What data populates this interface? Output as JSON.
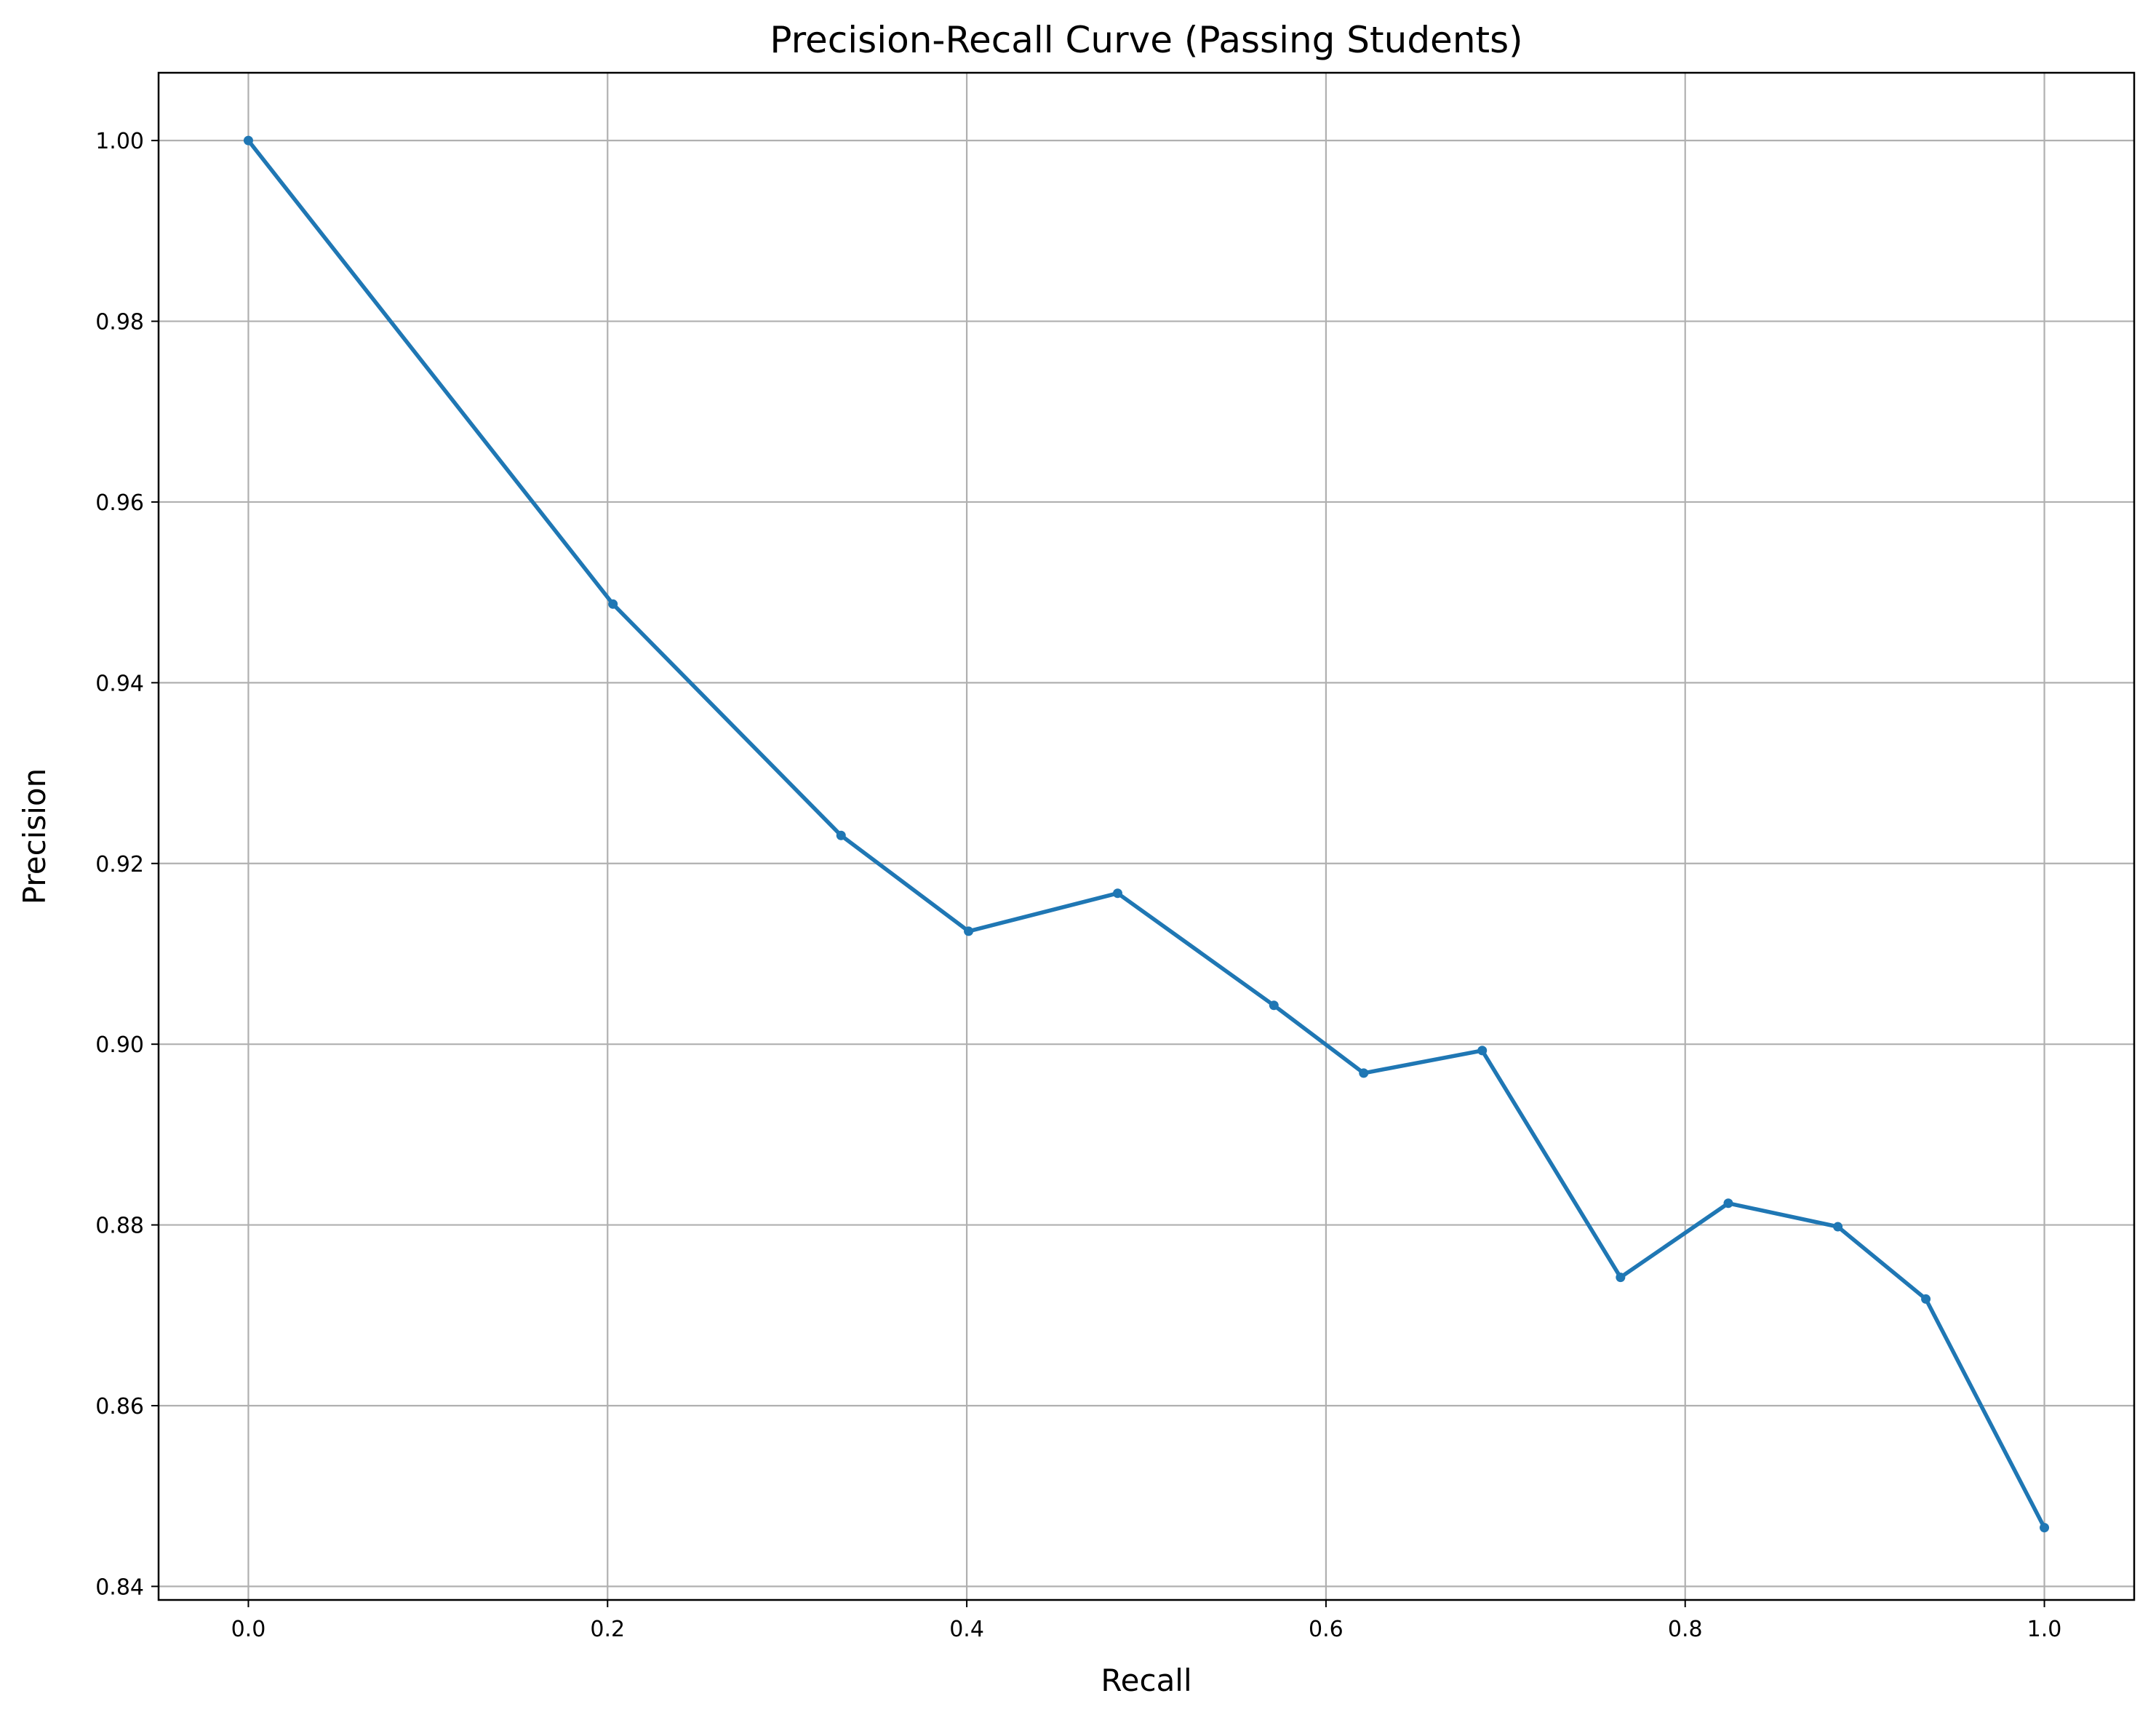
{
  "chart_data": {
    "type": "line",
    "title": "Precision-Recall Curve (Passing Students)",
    "xlabel": "Recall",
    "ylabel": "Precision",
    "xlim": [
      -0.05,
      1.05
    ],
    "ylim": [
      0.8385,
      1.0075
    ],
    "xticks": [
      0.0,
      0.2,
      0.4,
      0.6,
      0.8,
      1.0
    ],
    "xtick_labels": [
      "0.0",
      "0.2",
      "0.4",
      "0.6",
      "0.8",
      "1.0"
    ],
    "yticks": [
      0.84,
      0.86,
      0.88,
      0.9,
      0.92,
      0.94,
      0.96,
      0.98,
      1.0
    ],
    "ytick_labels": [
      "0.84",
      "0.86",
      "0.88",
      "0.90",
      "0.92",
      "0.94",
      "0.96",
      "0.98",
      "1.00"
    ],
    "grid": true,
    "line_color": "#1f77b4",
    "marker": "dot",
    "points": [
      {
        "x": 0.0,
        "y": 1.0
      },
      {
        "x": 0.203,
        "y": 0.9487
      },
      {
        "x": 0.33,
        "y": 0.9231
      },
      {
        "x": 0.401,
        "y": 0.9125
      },
      {
        "x": 0.484,
        "y": 0.9167
      },
      {
        "x": 0.571,
        "y": 0.9043
      },
      {
        "x": 0.621,
        "y": 0.8968
      },
      {
        "x": 0.687,
        "y": 0.8993
      },
      {
        "x": 0.764,
        "y": 0.8742
      },
      {
        "x": 0.824,
        "y": 0.8824
      },
      {
        "x": 0.885,
        "y": 0.8798
      },
      {
        "x": 0.934,
        "y": 0.8718
      },
      {
        "x": 1.0,
        "y": 0.8465
      }
    ]
  }
}
